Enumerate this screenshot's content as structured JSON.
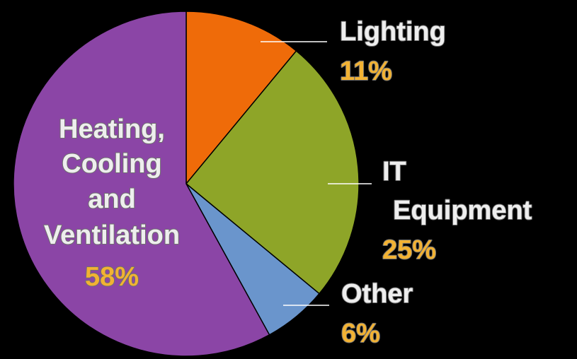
{
  "chart_data": {
    "type": "pie",
    "title": "",
    "slices": [
      {
        "label": "Lighting",
        "label_lines": [
          "Lighting"
        ],
        "percent_label": "11%",
        "value": 11,
        "color": "#ef6b09"
      },
      {
        "label": "IT Equipment",
        "label_lines": [
          "IT",
          "Equipment"
        ],
        "percent_label": "25%",
        "value": 25,
        "color": "#8ea528"
      },
      {
        "label": "Other",
        "label_lines": [
          "Other"
        ],
        "percent_label": "6%",
        "value": 6,
        "color": "#6a95cc"
      },
      {
        "label": "Heating, Cooling and Ventilation",
        "label_lines": [
          "Heating,",
          "Cooling",
          "and",
          "Ventilation"
        ],
        "percent_label": "58%",
        "value": 58,
        "color": "#8b45a6"
      }
    ],
    "start_angle": "12 o'clock",
    "direction": "clockwise",
    "legend": "none",
    "background": "#000000",
    "label_color": "#eeeeee",
    "percent_color": "#f2b233"
  }
}
